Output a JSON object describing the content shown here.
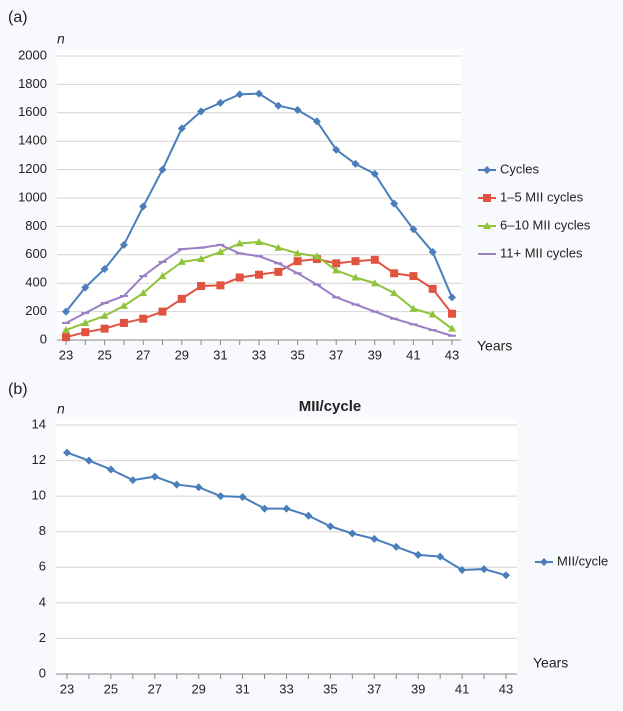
{
  "chart_data": [
    {
      "type": "line",
      "panel": "(a)",
      "y_label": "n",
      "x_label": "Years",
      "categories": [
        "23",
        null,
        "25",
        null,
        "27",
        null,
        "29",
        null,
        "31",
        null,
        "33",
        null,
        "35",
        null,
        "37",
        null,
        "39",
        null,
        "41",
        null,
        "43"
      ],
      "ylim": [
        0,
        2000
      ],
      "yticks": [
        0,
        200,
        400,
        600,
        800,
        1000,
        1200,
        1400,
        1600,
        1800,
        2000
      ],
      "grid": true,
      "legend": "right",
      "series": [
        {
          "name": "Cycles",
          "color": "#4a7ebb",
          "values": [
            200,
            370,
            500,
            670,
            940,
            1200,
            1490,
            1610,
            1670,
            1730,
            1735,
            1650,
            1620,
            1540,
            1340,
            1240,
            1170,
            960,
            780,
            620,
            300
          ]
        },
        {
          "name": "1–5 MII cycles",
          "color": "#e0533f",
          "values": [
            20,
            55,
            80,
            120,
            150,
            200,
            290,
            380,
            385,
            440,
            460,
            480,
            555,
            570,
            540,
            555,
            565,
            470,
            450,
            360,
            185
          ]
        },
        {
          "name": "6–10 MII cycles",
          "color": "#8fc33a",
          "values": [
            70,
            120,
            170,
            240,
            330,
            450,
            550,
            570,
            620,
            680,
            690,
            650,
            610,
            590,
            490,
            440,
            400,
            330,
            220,
            180,
            80
          ]
        },
        {
          "name": "11+ MII cycles",
          "color": "#9a7fc4",
          "values": [
            120,
            190,
            260,
            310,
            450,
            550,
            640,
            650,
            670,
            610,
            590,
            540,
            470,
            390,
            300,
            250,
            200,
            150,
            110,
            70,
            30
          ]
        }
      ]
    },
    {
      "type": "line",
      "panel": "(b)",
      "y_label": "n",
      "x_label": "Years",
      "title": "MII/cycle",
      "categories": [
        "23",
        null,
        "25",
        null,
        "27",
        null,
        "29",
        null,
        "31",
        null,
        "33",
        null,
        "35",
        null,
        "37",
        null,
        "39",
        null,
        "41",
        null,
        "43"
      ],
      "ylim": [
        0,
        14
      ],
      "yticks": [
        0,
        2,
        4,
        6,
        8,
        10,
        12,
        14
      ],
      "grid": true,
      "legend": "right",
      "series": [
        {
          "name": "MII/cycle",
          "color": "#4a7ebb",
          "values": [
            12.45,
            12.0,
            11.5,
            10.9,
            11.1,
            10.65,
            10.5,
            10.0,
            9.95,
            9.3,
            9.3,
            8.9,
            8.3,
            7.9,
            7.6,
            7.15,
            6.7,
            6.6,
            5.85,
            5.9,
            5.55
          ]
        }
      ]
    }
  ]
}
